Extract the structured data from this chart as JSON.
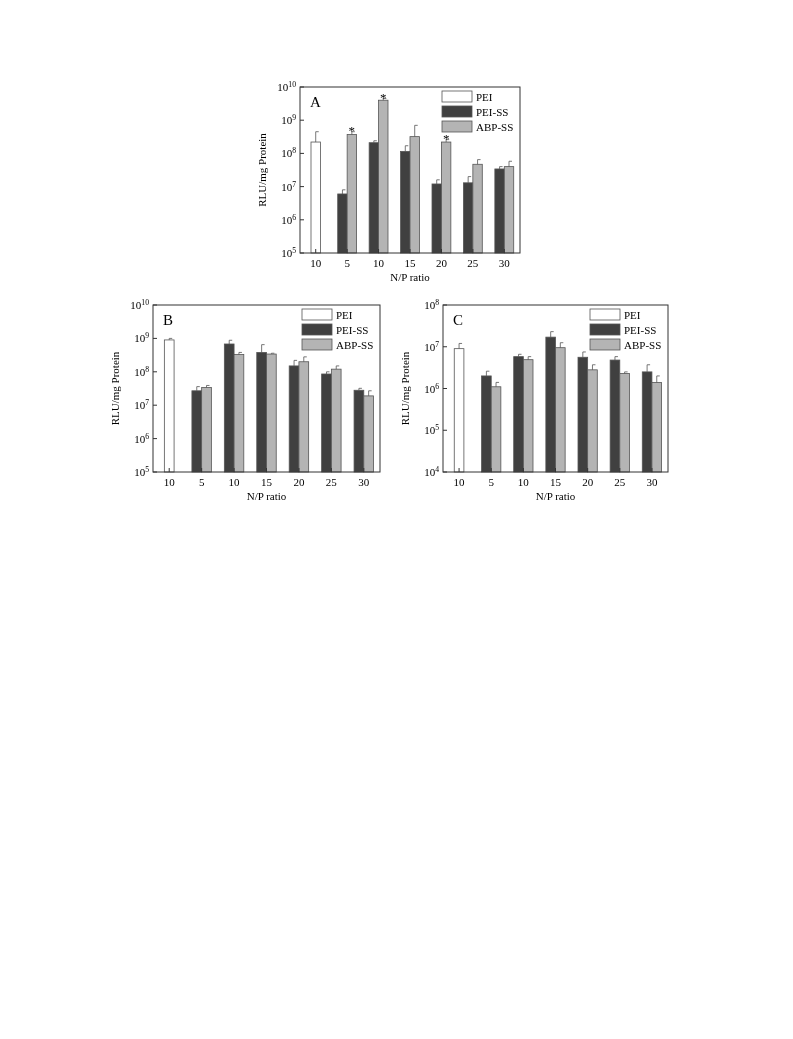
{
  "chart_data": [
    {
      "type": "bar",
      "title": "A",
      "xlabel": "N/P ratio",
      "ylabel": "RLU/mg Protein",
      "log": true,
      "legend": "top right",
      "categories": [
        "10",
        "5",
        "10",
        "15",
        "20",
        "25",
        "30"
      ],
      "ylim": [
        100000,
        10000000000
      ],
      "yticks": [
        {
          "value": 100000,
          "label": "10$^{5}$"
        },
        {
          "value": 1000000,
          "label": "10$^{6}$"
        },
        {
          "value": 10000000,
          "label": "10$^{7}$"
        },
        {
          "value": 100000000,
          "label": "10$^{8}$"
        },
        {
          "value": 1000000000,
          "label": "10$^{9}$"
        },
        {
          "value": 10000000000,
          "label": "10$^{10}$"
        }
      ],
      "series": [
        {
          "name": "PEI",
          "color": "#ffffff",
          "values": [
            220000000,
            null,
            null,
            null,
            null,
            null,
            null
          ],
          "errors": [
            [
              220000000,
              450000000
            ],
            null,
            null,
            null,
            null,
            null,
            null
          ]
        },
        {
          "name": "PEI-SS",
          "color": "#404040",
          "values": [
            null,
            6000000,
            210000000,
            115000000,
            12000000,
            13000000,
            34000000
          ],
          "errors": [
            null,
            [
              6000000,
              8000000
            ],
            [
              210000000,
              240000000
            ],
            [
              115000000,
              170000000
            ],
            [
              12000000,
              16000000
            ],
            [
              13000000,
              20000000
            ],
            [
              34000000,
              40000000
            ]
          ]
        },
        {
          "name": "ABP-SS",
          "color": "#b4b4b4",
          "values": [
            null,
            370000000,
            4000000000,
            320000000,
            220000000,
            47000000,
            40000000
          ],
          "errors": [
            null,
            [
              370000000,
              450000000
            ],
            [
              4000000000,
              4500000000
            ],
            [
              320000000,
              700000000
            ],
            [
              220000000,
              260000000
            ],
            [
              47000000,
              65000000
            ],
            [
              40000000,
              58000000
            ]
          ]
        }
      ],
      "annotations": [
        {
          "text": "*",
          "x": "5",
          "y": 450000000
        },
        "*",
        {
          "text": "*",
          "x": "20",
          "y": 260000000
        }
      ]
    },
    {
      "type": "bar",
      "title": "B",
      "xlabel": "N/P ratio",
      "ylabel": "RLU/mg Protein",
      "log": true,
      "legend": "top right",
      "categories": [
        "10",
        "5",
        "10",
        "15",
        "20",
        "25",
        "30"
      ],
      "ylim": [
        100000,
        10000000000
      ],
      "yticks": [
        {
          "value": 100000,
          "label": "10$^{5}$"
        },
        {
          "value": 1000000,
          "label": "10$^{6}$"
        },
        {
          "value": 10000000,
          "label": "10$^{7}$"
        },
        {
          "value": 100000000,
          "label": "10$^{8}$"
        },
        {
          "value": 1000000000,
          "label": "10$^{9}$"
        },
        {
          "value": 10000000000,
          "label": "10$^{10}$"
        }
      ],
      "series": [
        {
          "name": "PEI",
          "color": "#ffffff",
          "values": [
            900000000,
            null,
            null,
            null,
            null,
            null,
            null
          ],
          "errors": [
            [
              900000000,
              1000000000
            ],
            null,
            null,
            null,
            null,
            null,
            null
          ]
        },
        {
          "name": "PEI-SS",
          "color": "#404040",
          "values": [
            null,
            27000000,
            680000000,
            380000000,
            150000000,
            86000000,
            28000000
          ],
          "errors": [
            null,
            [
              27000000,
              36000000
            ],
            [
              680000000,
              880000000
            ],
            [
              380000000,
              650000000
            ],
            [
              150000000,
              220000000
            ],
            [
              86000000,
              100000000
            ],
            [
              28000000,
              32000000
            ]
          ]
        },
        {
          "name": "ABP-SS",
          "color": "#b4b4b4",
          "values": [
            null,
            34000000,
            330000000,
            340000000,
            200000000,
            120000000,
            19000000
          ],
          "errors": [
            null,
            [
              34000000,
              39000000
            ],
            [
              330000000,
              380000000
            ],
            [
              340000000,
              360000000
            ],
            [
              200000000,
              280000000
            ],
            [
              120000000,
              150000000
            ],
            [
              19000000,
              27000000
            ]
          ]
        }
      ]
    },
    {
      "type": "bar",
      "title": "C",
      "xlabel": "N/P ratio",
      "ylabel": "RLU/mg Protein",
      "log": true,
      "legend": "top right",
      "categories": [
        "10",
        "5",
        "10",
        "15",
        "20",
        "25",
        "30"
      ],
      "ylim": [
        10000,
        100000000
      ],
      "yticks": [
        {
          "value": 10000,
          "label": "10$^{4}$"
        },
        {
          "value": 100000,
          "label": "10$^{5}$"
        },
        {
          "value": 1000000,
          "label": "10$^{6}$"
        },
        {
          "value": 10000000,
          "label": "10$^{7}$"
        },
        {
          "value": 100000000,
          "label": "10$^{8}$"
        }
      ],
      "series": [
        {
          "name": "PEI",
          "color": "#ffffff",
          "values": [
            9000000,
            null,
            null,
            null,
            null,
            null,
            null
          ],
          "errors": [
            [
              9000000,
              12000000
            ],
            null,
            null,
            null,
            null,
            null,
            null
          ]
        },
        {
          "name": "PEI-SS",
          "color": "#404040",
          "values": [
            null,
            2000000,
            5800000,
            17000000,
            5600000,
            4800000,
            2500000
          ],
          "errors": [
            null,
            [
              2000000,
              2600000
            ],
            [
              5800000,
              6600000
            ],
            [
              17000000,
              23000000
            ],
            [
              5600000,
              7500000
            ],
            [
              4800000,
              5800000
            ],
            [
              2500000,
              3700000
            ]
          ]
        },
        {
          "name": "ABP-SS",
          "color": "#b4b4b4",
          "values": [
            null,
            1100000,
            4900000,
            9500000,
            2800000,
            2300000,
            1400000
          ],
          "errors": [
            null,
            [
              1100000,
              1400000
            ],
            [
              4900000,
              5800000
            ],
            [
              9500000,
              12500000
            ],
            [
              2800000,
              3700000
            ],
            [
              2300000,
              2500000
            ],
            [
              1400000,
              2000000
            ]
          ]
        }
      ]
    }
  ]
}
